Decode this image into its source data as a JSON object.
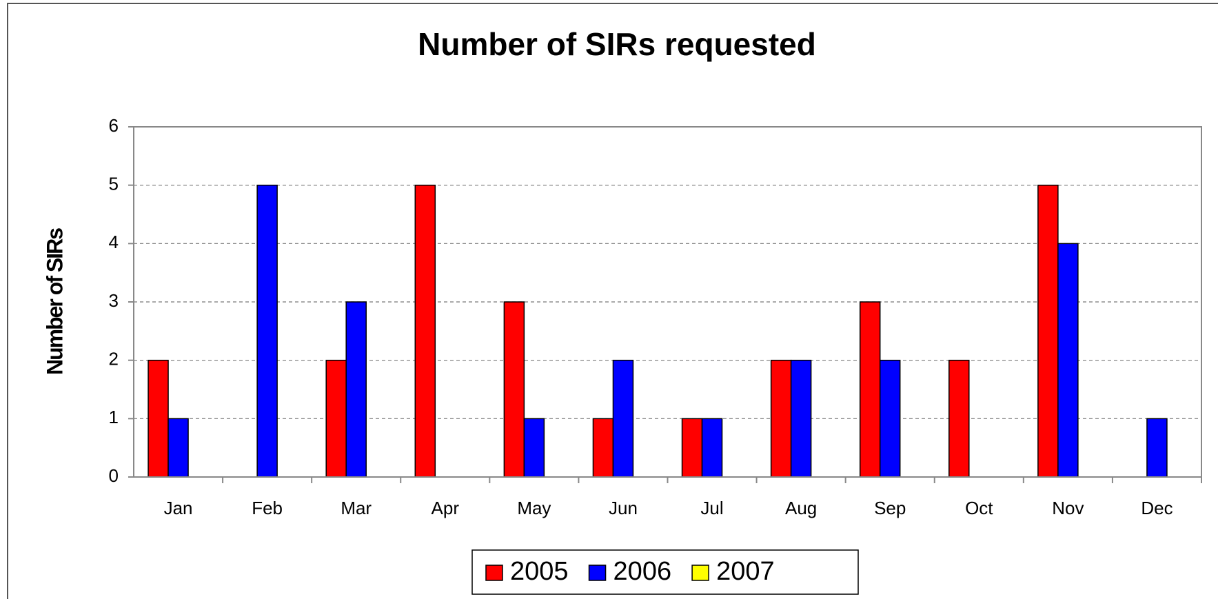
{
  "chart_data": {
    "type": "bar",
    "title": "Number of SIRs requested",
    "y_label": "Number of SIRs",
    "categories": [
      "Jan",
      "Feb",
      "Mar",
      "Apr",
      "May",
      "Jun",
      "Jul",
      "Aug",
      "Sep",
      "Oct",
      "Nov",
      "Dec"
    ],
    "series": [
      {
        "name": "2005",
        "color": "#ff0000",
        "values": [
          2,
          0,
          2,
          5,
          3,
          1,
          1,
          2,
          3,
          2,
          5,
          0
        ]
      },
      {
        "name": "2006",
        "color": "#0000ff",
        "values": [
          1,
          5,
          3,
          0,
          1,
          2,
          1,
          2,
          2,
          0,
          4,
          1
        ]
      },
      {
        "name": "2007",
        "color": "#ffff00",
        "values": [
          0,
          0,
          0,
          0,
          0,
          0,
          0,
          0,
          0,
          0,
          0,
          0
        ]
      }
    ],
    "ylim": [
      0,
      6
    ],
    "yticks": [
      0,
      1,
      2,
      3,
      4,
      5,
      6
    ],
    "grid": true,
    "legend": "bottom"
  }
}
